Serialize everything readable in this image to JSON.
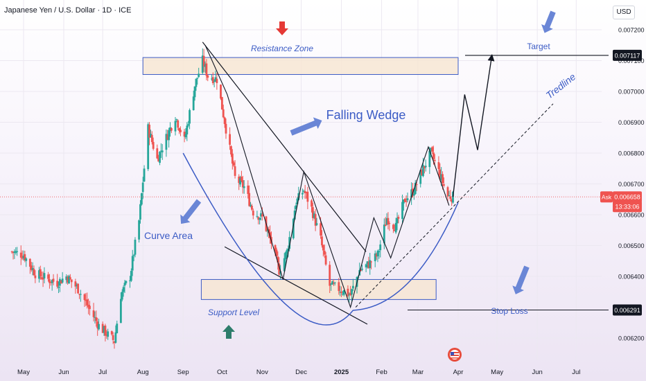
{
  "header": {
    "symbol": "Japanese Yen / U.S. Dollar · 1D · ICE",
    "currency": "USD"
  },
  "price_axis": {
    "ticks": [
      "0.007200",
      "0.007100",
      "0.007000",
      "0.006900",
      "0.006800",
      "0.006700",
      "0.006600",
      "0.006500",
      "0.006400",
      "0.006200"
    ],
    "target_badge": "0.007117",
    "stop_badge": "0.006291",
    "ask_label": "Ask",
    "ask_price": "0.006658",
    "countdown": "13:33:06"
  },
  "time_axis": [
    "May",
    "Jun",
    "Jul",
    "Aug",
    "Sep",
    "Oct",
    "Nov",
    "Dec",
    "2025",
    "Feb",
    "Mar",
    "Apr",
    "May",
    "Jun",
    "Jul"
  ],
  "annotations": {
    "resistance_zone": "Resistance Zone",
    "support_level": "Support Level",
    "falling_wedge": "Falling Wedge",
    "curve_area": "Curve Area",
    "target": "Target",
    "tredline": "Tredline",
    "stop_loss": "Stop Loss"
  },
  "colors": {
    "up_candle": "#26a69a",
    "down_candle": "#ef5350",
    "annotation_blue": "#3b5bc5",
    "arrow_fill": "#6a86d6",
    "zone_fill": "#f7e6d3",
    "zone_stroke": "#3b5bc5"
  },
  "chart_data": {
    "type": "candlestick",
    "symbol": "JPY/USD",
    "timeframe": "1D",
    "ylim": [
      0.00615,
      0.00727
    ],
    "x_months": [
      "May",
      "Jun",
      "Jul",
      "Aug",
      "Sep",
      "Oct",
      "Nov",
      "Dec",
      "2025",
      "Feb",
      "Mar",
      "Apr",
      "May",
      "Jun",
      "Jul"
    ],
    "close_path": [
      {
        "date": "2024-04-22",
        "close": 0.00648
      },
      {
        "date": "2024-05-01",
        "close": 0.00647
      },
      {
        "date": "2024-05-10",
        "close": 0.00641
      },
      {
        "date": "2024-05-20",
        "close": 0.00639
      },
      {
        "date": "2024-05-27",
        "close": 0.00638
      },
      {
        "date": "2024-06-03",
        "close": 0.0064
      },
      {
        "date": "2024-06-12",
        "close": 0.00636
      },
      {
        "date": "2024-06-20",
        "close": 0.0063
      },
      {
        "date": "2024-06-28",
        "close": 0.00624
      },
      {
        "date": "2024-07-05",
        "close": 0.00621
      },
      {
        "date": "2024-07-10",
        "close": 0.00619
      },
      {
        "date": "2024-07-15",
        "close": 0.00634
      },
      {
        "date": "2024-07-22",
        "close": 0.0064
      },
      {
        "date": "2024-07-29",
        "close": 0.00658
      },
      {
        "date": "2024-08-05",
        "close": 0.00688
      },
      {
        "date": "2024-08-12",
        "close": 0.00678
      },
      {
        "date": "2024-08-19",
        "close": 0.00685
      },
      {
        "date": "2024-08-26",
        "close": 0.00692
      },
      {
        "date": "2024-09-02",
        "close": 0.00684
      },
      {
        "date": "2024-09-10",
        "close": 0.00702
      },
      {
        "date": "2024-09-16",
        "close": 0.0071
      },
      {
        "date": "2024-09-20",
        "close": 0.00705
      },
      {
        "date": "2024-09-27",
        "close": 0.00704
      },
      {
        "date": "2024-10-04",
        "close": 0.00688
      },
      {
        "date": "2024-10-11",
        "close": 0.00672
      },
      {
        "date": "2024-10-18",
        "close": 0.00669
      },
      {
        "date": "2024-10-25",
        "close": 0.00661
      },
      {
        "date": "2024-11-01",
        "close": 0.00659
      },
      {
        "date": "2024-11-08",
        "close": 0.00651
      },
      {
        "date": "2024-11-14",
        "close": 0.00642
      },
      {
        "date": "2024-11-20",
        "close": 0.00648
      },
      {
        "date": "2024-11-27",
        "close": 0.00664
      },
      {
        "date": "2024-12-03",
        "close": 0.00668
      },
      {
        "date": "2024-12-09",
        "close": 0.00662
      },
      {
        "date": "2024-12-16",
        "close": 0.00652
      },
      {
        "date": "2024-12-23",
        "close": 0.00637
      },
      {
        "date": "2024-12-30",
        "close": 0.00636
      },
      {
        "date": "2025-01-08",
        "close": 0.00634
      },
      {
        "date": "2025-01-15",
        "close": 0.00642
      },
      {
        "date": "2025-01-22",
        "close": 0.00644
      },
      {
        "date": "2025-01-29",
        "close": 0.00647
      },
      {
        "date": "2025-02-05",
        "close": 0.00659
      },
      {
        "date": "2025-02-12",
        "close": 0.00656
      },
      {
        "date": "2025-02-19",
        "close": 0.00665
      },
      {
        "date": "2025-02-26",
        "close": 0.00668
      },
      {
        "date": "2025-03-05",
        "close": 0.00675
      },
      {
        "date": "2025-03-11",
        "close": 0.0068
      },
      {
        "date": "2025-03-17",
        "close": 0.00674
      },
      {
        "date": "2025-03-24",
        "close": 0.00666
      },
      {
        "date": "2025-03-28",
        "close": 0.006658
      }
    ],
    "zones": [
      {
        "name": "Resistance Zone",
        "from": "2024-08-01",
        "to": "2025-04-01",
        "low": 0.007055,
        "high": 0.00711
      },
      {
        "name": "Support Level",
        "from": "2024-09-15",
        "to": "2025-03-15",
        "low": 0.006325,
        "high": 0.00639
      }
    ],
    "levels": [
      {
        "name": "Target",
        "price": 0.007117
      },
      {
        "name": "Stop Loss",
        "price": 0.006291
      }
    ],
    "pattern": "Falling Wedge",
    "projected_path": [
      {
        "date": "2025-03-28",
        "price": 0.006658
      },
      {
        "date": "2025-04-06",
        "price": 0.00699
      },
      {
        "date": "2025-04-16",
        "price": 0.00681
      },
      {
        "date": "2025-04-27",
        "price": 0.007117
      }
    ]
  }
}
